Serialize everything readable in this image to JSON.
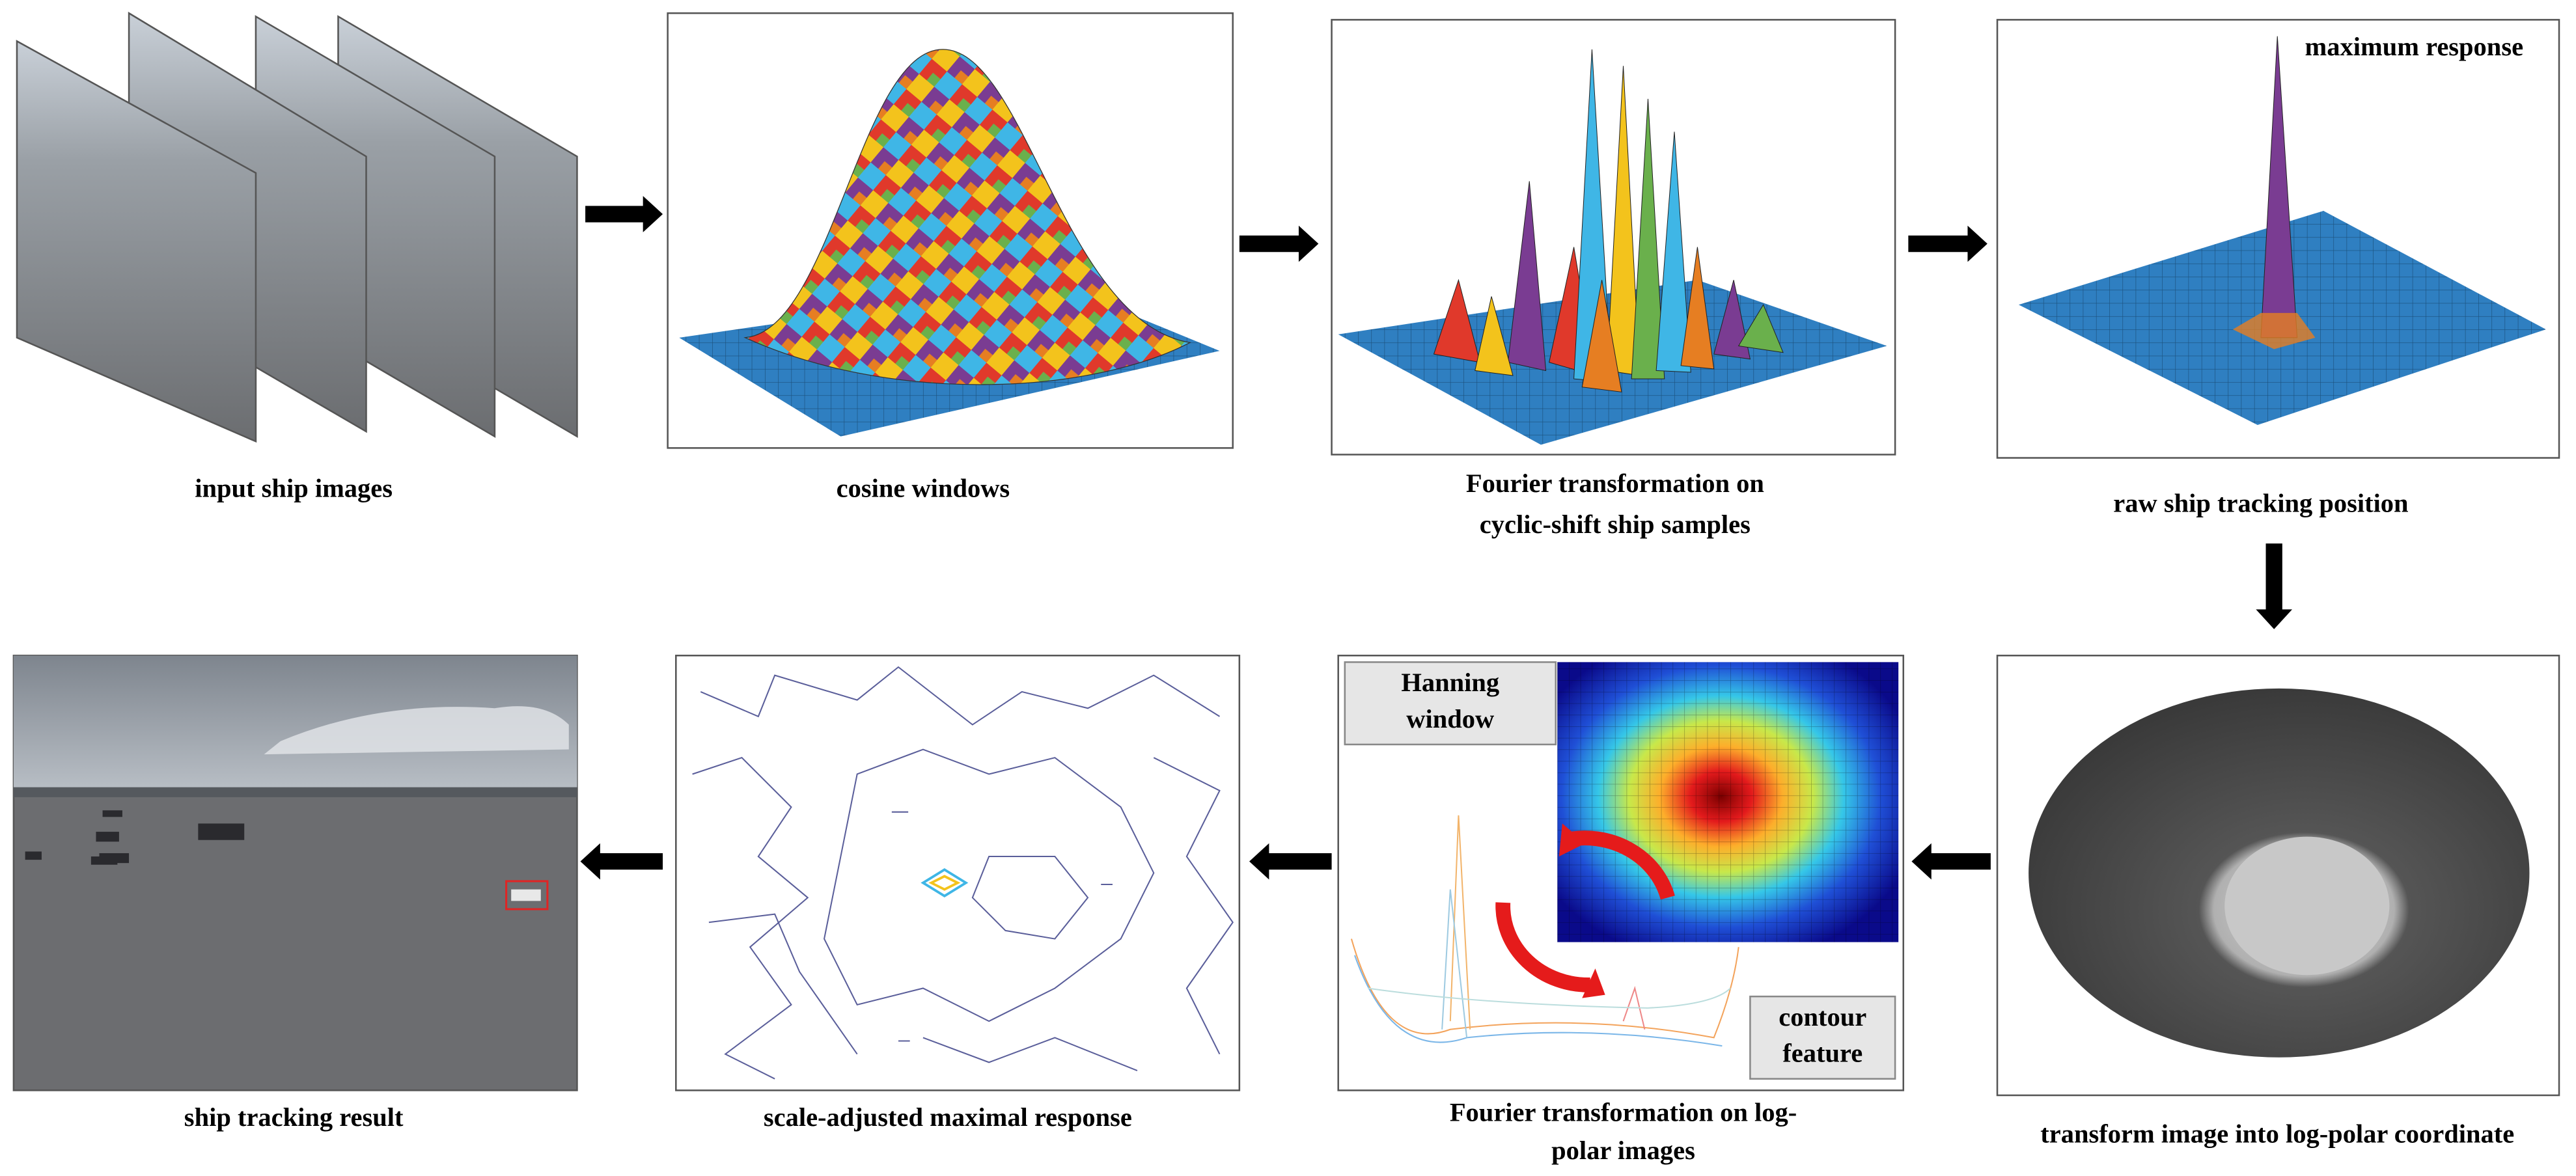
{
  "panels": [
    {
      "label": "input ship images"
    },
    {
      "label": "cosine windows"
    },
    {
      "label_lines": [
        "Fourier transformation on",
        "cyclic-shift ship samples"
      ]
    },
    {
      "label": "raw ship tracking position",
      "annotation": "maximum response"
    },
    {
      "label": "transform image into log-polar coordinate"
    },
    {
      "label_lines": [
        "Fourier transformation on log-",
        "polar images"
      ],
      "hanning_lines": [
        "Hanning",
        "window"
      ],
      "contour_lines": [
        "contour",
        "feature"
      ]
    },
    {
      "label": "scale-adjusted maximal response"
    },
    {
      "label": "ship tracking result"
    }
  ]
}
